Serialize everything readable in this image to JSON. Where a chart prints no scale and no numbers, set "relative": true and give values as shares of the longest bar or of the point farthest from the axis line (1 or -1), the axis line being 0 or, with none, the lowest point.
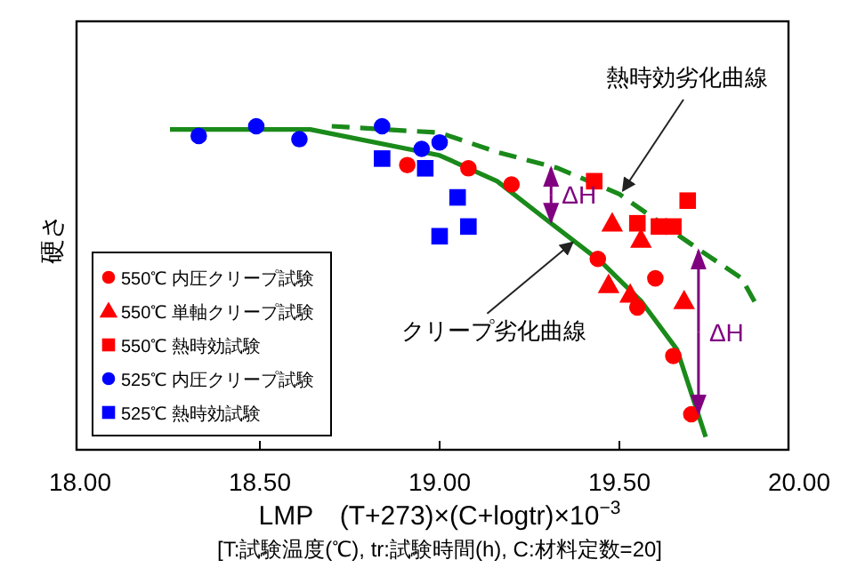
{
  "chart_data": {
    "type": "scatter",
    "relative": true,
    "ylabel": "硬さ",
    "xlabel": "LMP　(T+273)×(C+logtr)×10$^{−3}$",
    "xlim": [
      18,
      20
    ],
    "xticks": [
      {
        "value": 18,
        "label": "18.00"
      },
      {
        "value": 18.5,
        "label": "18.50"
      },
      {
        "value": 19,
        "label": "19.00"
      },
      {
        "value": 19.5,
        "label": "19.50"
      },
      {
        "value": 20,
        "label": "20.00"
      }
    ],
    "legend": "left",
    "grid": false,
    "series": [
      {
        "name": "550℃ 内圧クリープ試験",
        "color": "#ff0000",
        "marker": "circle",
        "x": [
          18.91,
          19.08,
          19.2,
          19.44,
          19.6,
          19.55,
          19.65,
          19.7
        ],
        "values": [
          0.88,
          0.87,
          0.82,
          0.59,
          0.53,
          0.44,
          0.29,
          0.11
        ]
      },
      {
        "name": "550℃ 単軸クリープ試験",
        "color": "#ff0000",
        "marker": "triangle",
        "x": [
          19.48,
          19.56,
          19.47,
          19.53,
          19.68
        ],
        "values": [
          0.7,
          0.65,
          0.51,
          0.48,
          0.46
        ]
      },
      {
        "name": "550℃ 熱時効試験",
        "color": "#ff0000",
        "marker": "square",
        "x": [
          19.43,
          19.55,
          19.61,
          19.65,
          19.69
        ],
        "values": [
          0.83,
          0.7,
          0.69,
          0.69,
          0.77
        ]
      },
      {
        "name": "525℃ 内圧クリープ試験",
        "color": "#0000ff",
        "marker": "circle",
        "x": [
          18.33,
          18.49,
          18.61,
          18.84,
          18.95,
          19.0
        ],
        "values": [
          0.97,
          1.0,
          0.96,
          1.0,
          0.93,
          0.95
        ]
      },
      {
        "name": "525℃ 熱時効試験",
        "color": "#0000ff",
        "marker": "square",
        "x": [
          18.84,
          18.96,
          19.05,
          19.0,
          19.08
        ],
        "values": [
          0.9,
          0.87,
          0.78,
          0.66,
          0.69
        ]
      },
      {
        "type": "line",
        "color": "#1a8a1a",
        "line_style": "solid",
        "marker": "none",
        "x": [
          18.25,
          18.64,
          19.0,
          19.16,
          19.31,
          19.45,
          19.56,
          19.66,
          19.74
        ],
        "values": [
          0.99,
          0.99,
          0.91,
          0.83,
          0.7,
          0.58,
          0.46,
          0.31,
          0.04
        ]
      },
      {
        "type": "line",
        "color": "#1a8a1a",
        "line_style": "dashed",
        "marker": "none",
        "x": [
          18.7,
          19.0,
          19.16,
          19.33,
          19.5,
          19.59,
          19.72,
          19.84,
          19.88
        ],
        "values": [
          1.0,
          0.98,
          0.92,
          0.87,
          0.79,
          0.72,
          0.62,
          0.53,
          0.45
        ]
      }
    ],
    "annotations": [
      {
        "text": "熱時効劣化曲線",
        "x": 19.5,
        "y": 0.79
      },
      {
        "text": "クリープ劣化曲線",
        "x": 19.36,
        "y": 0.63
      },
      "ΔH",
      "ΔH",
      "[T:試験温度(℃), tr:試験時間(h), C:材料定数=20]"
    ]
  }
}
